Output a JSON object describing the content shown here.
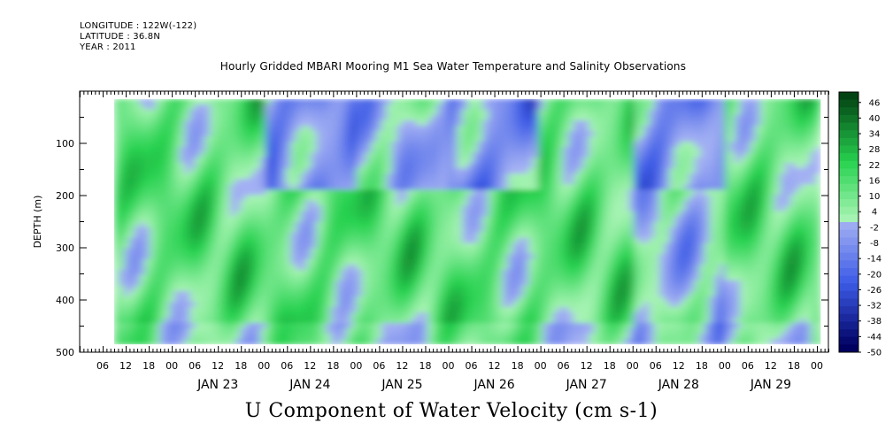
{
  "header": {
    "longitude": "LONGITUDE : 122W(-122)",
    "latitude": "LATITUDE : 36.8N",
    "year": "YEAR : 2011"
  },
  "chart_data": {
    "type": "heatmap",
    "title": "Hourly Gridded MBARI Mooring M1 Sea Water Temperature and Salinity Observations",
    "xlabel": "U Component of Water Velocity (cm s-1)",
    "ylabel": "DEPTH (m)",
    "x_range_hours": [
      "2011-01-22T00",
      "2011-01-30T03"
    ],
    "data_x_range": [
      "2011-01-22T09",
      "2011-01-30T01"
    ],
    "hour_ticks": [
      "06",
      "12",
      "18",
      "00",
      "06",
      "12",
      "18",
      "00",
      "06",
      "12",
      "18",
      "00",
      "06",
      "12",
      "18",
      "00",
      "06",
      "12",
      "18",
      "00",
      "06",
      "12",
      "18",
      "00",
      "06",
      "12",
      "18",
      "00",
      "06",
      "12",
      "18",
      "00"
    ],
    "day_labels": [
      "JAN 23",
      "JAN 24",
      "JAN 25",
      "JAN 26",
      "JAN 27",
      "JAN 28",
      "JAN 29"
    ],
    "y_range": [
      0,
      500
    ],
    "data_y_range": [
      15,
      485
    ],
    "y_ticks": [
      "100",
      "200",
      "300",
      "400",
      "500"
    ],
    "colorbar": {
      "min": -50,
      "max": 50,
      "step": 3,
      "labels": [
        "46",
        "40",
        "34",
        "28",
        "22",
        "16",
        "10",
        "4",
        "-2",
        "-8",
        "-14",
        "-20",
        "-26",
        "-32",
        "-38",
        "-44",
        "-50"
      ],
      "low_color": "#000060",
      "mid_low_color": "#a8b4f4",
      "mid_high_color": "#a8f4b4",
      "high_color": "#003a10"
    },
    "field_description": [
      {
        "day": "JAN 23",
        "surface": "positive",
        "deep": "positive"
      },
      {
        "day": "JAN 24",
        "surface": "negative",
        "deep": "positive"
      },
      {
        "day": "JAN 25",
        "surface": "mixed",
        "deep": "positive"
      },
      {
        "day": "JAN 26",
        "surface": "negative",
        "deep": "positive"
      },
      {
        "day": "JAN 27",
        "surface": "positive",
        "deep": "positive"
      },
      {
        "day": "JAN 28",
        "surface": "negative",
        "deep": "mixed"
      },
      {
        "day": "JAN 29",
        "surface": "positive",
        "deep": "positive"
      }
    ]
  }
}
